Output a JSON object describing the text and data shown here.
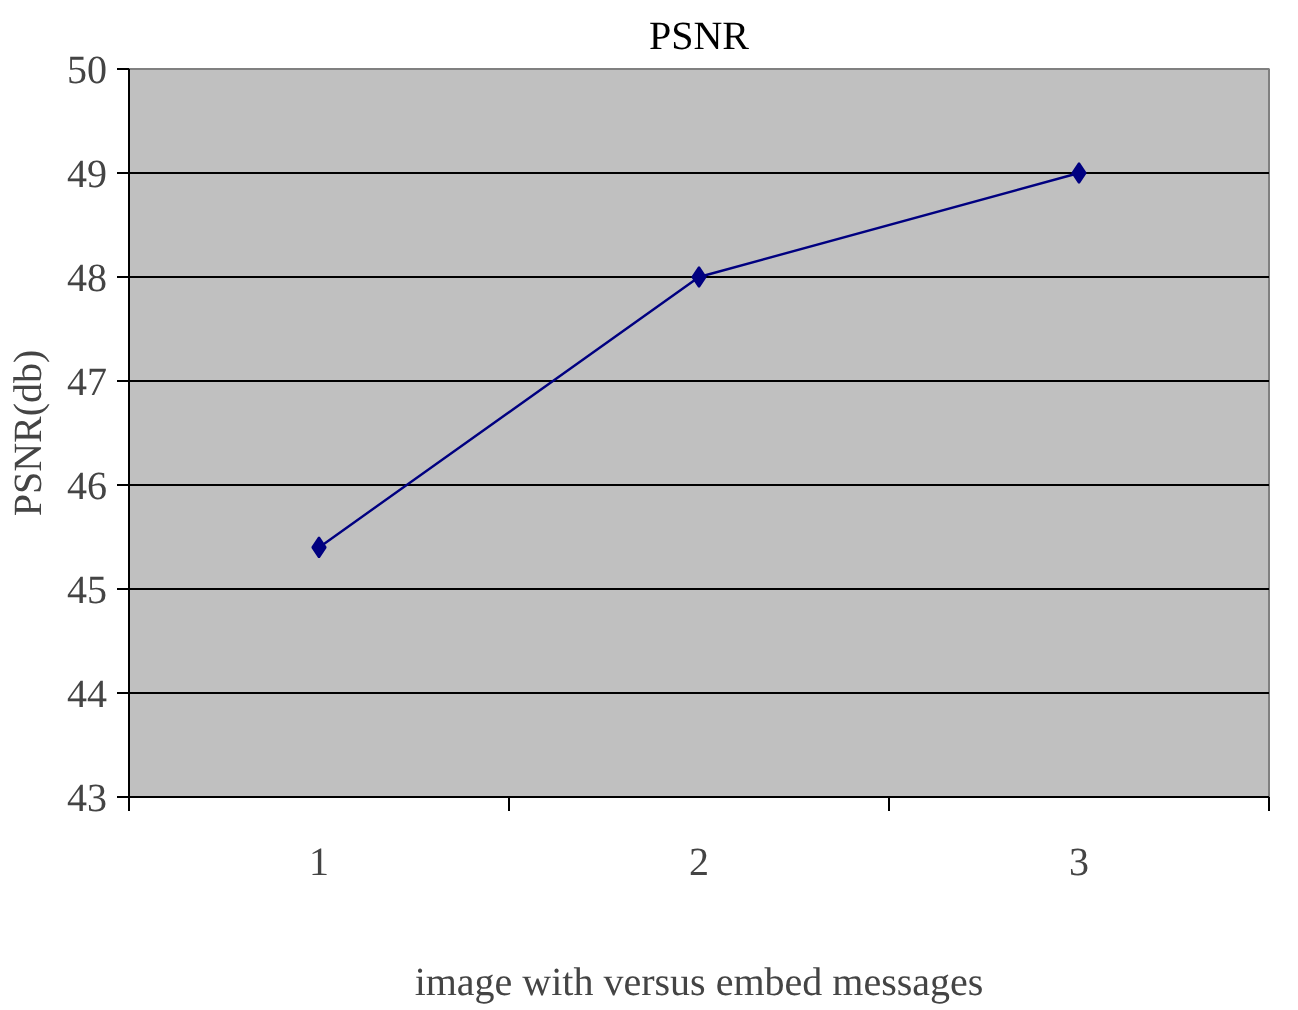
{
  "chart_data": {
    "type": "line",
    "title": "PSNR",
    "xlabel": "image with versus embed messages",
    "ylabel": "PSNR(db)",
    "categories": [
      "1",
      "2",
      "3"
    ],
    "series": [
      {
        "color": "#000080",
        "values": [
          45.4,
          48,
          49
        ]
      }
    ],
    "ylim": [
      43,
      50
    ],
    "yticks": [
      43,
      44,
      45,
      46,
      47,
      48,
      49,
      50
    ],
    "grid": "y",
    "marker": "diamond",
    "line_style": "solid"
  }
}
